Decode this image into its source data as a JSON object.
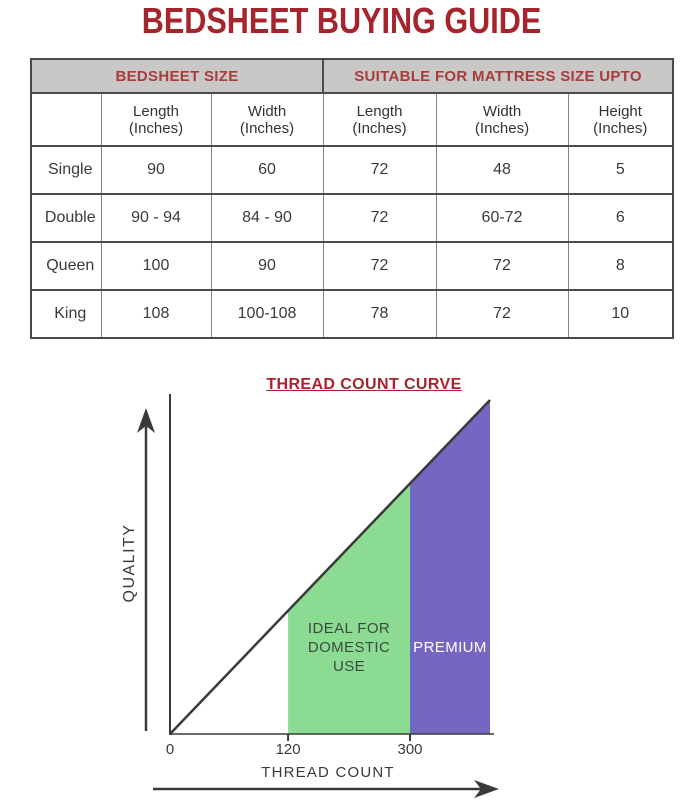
{
  "page": {
    "title": "BEDSHEET BUYING GUIDE"
  },
  "ui": {
    "columns": [
      {
        "label": "",
        "sub": ""
      },
      {
        "label": "Length",
        "sub": "(Inches)"
      },
      {
        "label": "Width",
        "sub": "(Inches)"
      },
      {
        "label": "Length",
        "sub": "(Inches)"
      },
      {
        "label": "Width",
        "sub": "(Inches)"
      },
      {
        "label": "Height",
        "sub": "(Inches)"
      }
    ]
  },
  "colors": {
    "title_red": "#a6242b",
    "header_red": "#a93b3d",
    "row_label_maroon": "#7e4547",
    "header_gray": "#c9c8c6",
    "ink": "#3a3a3a",
    "green_region": "#8bdc92",
    "purple_region": "#7467c1"
  },
  "chart_data": [
    {
      "type": "table",
      "title": "BEDSHEET BUYING GUIDE",
      "column_groups": [
        "BEDSHEET SIZE",
        "SUITABLE FOR MATTRESS SIZE UPTO"
      ],
      "columns": [
        "",
        "Length (Inches)",
        "Width (Inches)",
        "Length (Inches)",
        "Width (Inches)",
        "Height (Inches)"
      ],
      "rows": [
        [
          "Single",
          "90",
          "60",
          "72",
          "48",
          "5"
        ],
        [
          "Double",
          "90 - 94",
          "84 - 90",
          "72",
          "60-72",
          "6"
        ],
        [
          "Queen",
          "100",
          "90",
          "72",
          "72",
          "8"
        ],
        [
          "King",
          "108",
          "100-108",
          "78",
          "72",
          "10"
        ]
      ]
    },
    {
      "type": "area",
      "title": "THREAD COUNT CURVE",
      "xlabel": "THREAD COUNT",
      "ylabel": "QUALITY",
      "x_ticks": [
        0,
        120,
        300
      ],
      "relationship": "quality increases linearly with thread count (straight rising line from origin)",
      "axes_not_to_scale": true,
      "regions": [
        {
          "label": "IDEAL FOR DOMESTIC USE",
          "label_lines": [
            "IDEAL FOR",
            "DOMESTIC",
            "USE"
          ],
          "x_start": 120,
          "x_end": 300,
          "color": "#8bdc92",
          "label_color": "#3c4a3e"
        },
        {
          "label": "PREMIUM",
          "label_lines": [
            "PREMIUM"
          ],
          "x_start": 300,
          "x_end": null,
          "color": "#7467c1",
          "label_color": "#ffffff"
        }
      ]
    }
  ]
}
